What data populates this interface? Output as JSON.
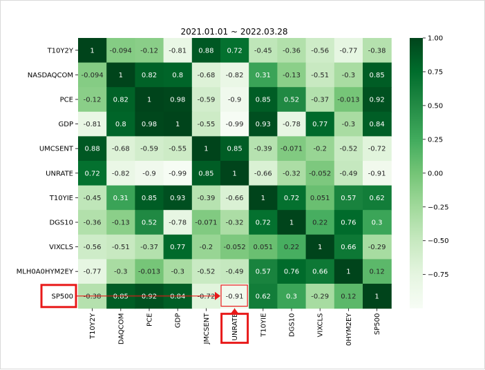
{
  "chart_data": {
    "type": "heatmap",
    "title": "2021.01.01 ~ 2022.03.28",
    "colormap": "Greens",
    "vmin": -1.0,
    "vmax": 1.0,
    "row_labels": [
      "T10Y2Y",
      "NASDAQCOM",
      "PCE",
      "GDP",
      "UMCSENT",
      "UNRATE",
      "T10YIE",
      "DGS10",
      "VIXCLS",
      "MLH0A0HYM2EY",
      "SP500"
    ],
    "col_labels": [
      "T10Y2Y",
      "DAQCOM",
      "PCE",
      "GDP",
      "JMCSENT",
      "UNRATE",
      "T10YIE",
      "DGS10",
      "VIXCLS",
      "0HYM2EY",
      "SP500"
    ],
    "values": [
      [
        1,
        -0.094,
        -0.12,
        -0.81,
        0.88,
        0.72,
        -0.45,
        -0.36,
        -0.56,
        -0.77,
        -0.38
      ],
      [
        -0.094,
        1,
        0.82,
        0.8,
        -0.68,
        -0.82,
        0.31,
        -0.13,
        -0.51,
        -0.3,
        0.85
      ],
      [
        -0.12,
        0.82,
        1,
        0.98,
        -0.59,
        -0.9,
        0.85,
        0.52,
        -0.37,
        -0.013,
        0.92
      ],
      [
        -0.81,
        0.8,
        0.98,
        1,
        -0.55,
        -0.99,
        0.93,
        -0.78,
        0.77,
        -0.3,
        0.84
      ],
      [
        0.88,
        -0.68,
        -0.59,
        -0.55,
        1,
        0.85,
        -0.39,
        -0.071,
        -0.2,
        -0.52,
        -0.72
      ],
      [
        0.72,
        -0.82,
        -0.9,
        -0.99,
        0.85,
        1,
        -0.66,
        -0.32,
        -0.052,
        -0.49,
        -0.91
      ],
      [
        -0.45,
        0.31,
        0.85,
        0.93,
        -0.39,
        -0.66,
        1,
        0.72,
        0.051,
        0.57,
        0.62
      ],
      [
        -0.36,
        -0.13,
        0.52,
        -0.78,
        -0.071,
        -0.32,
        0.72,
        1,
        0.22,
        0.76,
        0.3
      ],
      [
        -0.56,
        -0.51,
        -0.37,
        0.77,
        -0.2,
        -0.052,
        0.051,
        0.22,
        1,
        0.66,
        -0.29
      ],
      [
        -0.77,
        -0.3,
        -0.013,
        -0.3,
        -0.52,
        -0.49,
        0.57,
        0.76,
        0.66,
        1,
        0.12
      ],
      [
        -0.38,
        0.85,
        0.92,
        0.84,
        -0.72,
        -0.91,
        0.62,
        0.3,
        -0.29,
        0.12,
        1
      ]
    ],
    "colorbar_ticks": [
      "1.00",
      "0.75",
      "0.50",
      "0.25",
      "0.00",
      "−0.25",
      "−0.50",
      "−0.75"
    ],
    "colorbar_tick_values": [
      1.0,
      0.75,
      0.5,
      0.25,
      0.0,
      -0.25,
      -0.5,
      -0.75
    ],
    "annotations": {
      "highlight_row": "SP500",
      "highlight_col": "UNRATE",
      "highlight_value": "-0.91",
      "highlight_color": "#e81919"
    }
  }
}
